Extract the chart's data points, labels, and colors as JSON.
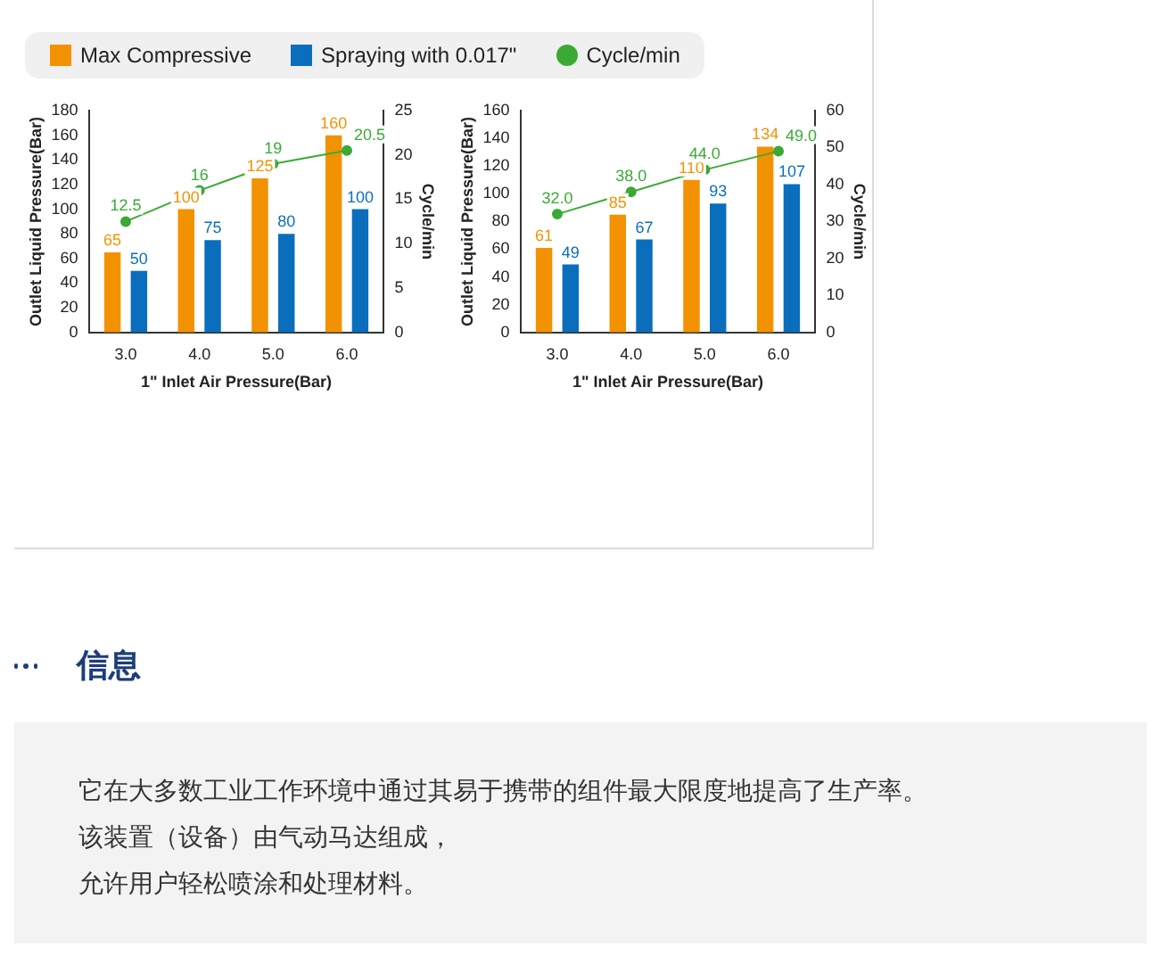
{
  "chart_data": [
    {
      "type": "bar",
      "categories": [
        "3.0",
        "4.0",
        "5.0",
        "6.0"
      ],
      "xlabel": "1\" Inlet Air Pressure(Bar)",
      "ylabel": "Outlet Liquid Pressure(Bar)",
      "y2label": "Cycle/min",
      "ylim": [
        0,
        180
      ],
      "yticks": [
        0,
        20,
        40,
        60,
        80,
        100,
        120,
        140,
        160,
        180
      ],
      "y2lim": [
        0,
        25
      ],
      "y2ticks": [
        0,
        5,
        10,
        15,
        20,
        25
      ],
      "grid": false,
      "legend": "top",
      "marker": "circle",
      "data_labels": true,
      "series": [
        {
          "name": "Max Compressive",
          "color": "#f39200",
          "values": [
            65,
            100,
            125,
            160
          ]
        },
        {
          "name": "Spraying with 0.017\"",
          "color": "#0a6ebd",
          "values": [
            50,
            75,
            80,
            100
          ]
        },
        {
          "name": "Cycle/min",
          "type": "line",
          "axis": "y2",
          "color": "#3aaa35",
          "values": [
            12.5,
            16,
            19,
            20.5
          ]
        }
      ]
    },
    {
      "type": "bar",
      "categories": [
        "3.0",
        "4.0",
        "5.0",
        "6.0"
      ],
      "xlabel": "1\" Inlet Air Pressure(Bar)",
      "ylabel": "Outlet Liquid Pressure(Bar)",
      "y2label": "Cycle/min",
      "ylim": [
        0,
        160
      ],
      "yticks": [
        0,
        20,
        40,
        60,
        80,
        100,
        120,
        140,
        160
      ],
      "y2lim": [
        0,
        60
      ],
      "y2ticks": [
        0,
        10,
        20,
        30,
        40,
        50,
        60
      ],
      "grid": false,
      "marker": "circle",
      "data_labels": true,
      "series": [
        {
          "color": "#f39200",
          "values": [
            61,
            85,
            110,
            134
          ]
        },
        {
          "color": "#0a6ebd",
          "values": [
            49,
            67,
            93,
            107
          ]
        },
        {
          "type": "line",
          "axis": "y2",
          "color": "#3aaa35",
          "values": [
            32,
            38,
            44,
            49
          ],
          "value_labels": [
            "32.0",
            "38.0",
            "44.0",
            "49.0"
          ]
        }
      ]
    },
    {
      "type": "other",
      "title": "信息",
      "annotations": [
        "它在大多数工业工作环境中通过其易于携带的组件最大限度地提高了生产率。",
        "该装置（设备）由气动马达组成，",
        "允许用户轻松喷涂和处理材料。"
      ]
    }
  ]
}
